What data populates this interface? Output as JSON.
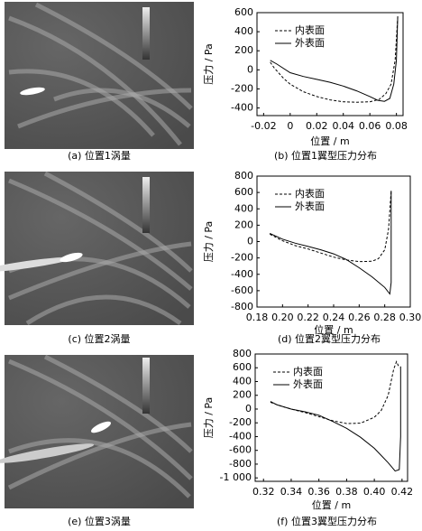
{
  "figures": [
    {
      "caption": "(a) 位置1涡量"
    },
    {
      "caption": "(c) 位置2涡量"
    },
    {
      "caption": "(e) 位置3涡量"
    }
  ],
  "chart_data": [
    {
      "type": "line",
      "caption": "(b) 位置1翼型压力分布",
      "xlabel": "位置 / m",
      "ylabel": "压力 / Pa",
      "legend": "upper left",
      "xlim": [
        -0.025,
        0.085
      ],
      "xticks": [
        -0.02,
        0,
        0.02,
        0.04,
        0.06,
        0.08
      ],
      "ylim": [
        -480,
        600
      ],
      "yticks": [
        -400,
        -200,
        0,
        200,
        400,
        600
      ],
      "series": [
        {
          "name": "内表面",
          "color": "#000000",
          "style": "dashed",
          "x": [
            -0.015,
            -0.012,
            -0.005,
            0,
            0.01,
            0.02,
            0.03,
            0.04,
            0.05,
            0.06,
            0.067,
            0.072,
            0.076,
            0.079,
            0.081
          ],
          "values": [
            80,
            20,
            -90,
            -150,
            -230,
            -280,
            -315,
            -335,
            -340,
            -335,
            -310,
            -250,
            -150,
            100,
            560
          ]
        },
        {
          "name": "外表面",
          "color": "#000000",
          "style": "solid",
          "x": [
            -0.015,
            -0.01,
            0,
            0.01,
            0.02,
            0.03,
            0.04,
            0.05,
            0.06,
            0.066,
            0.071,
            0.075,
            0.078,
            0.08,
            0.081
          ],
          "values": [
            100,
            60,
            -30,
            -70,
            -100,
            -130,
            -170,
            -220,
            -280,
            -320,
            -330,
            -300,
            -150,
            100,
            560
          ]
        }
      ]
    },
    {
      "type": "line",
      "caption": "(d) 位置2翼型压力分布",
      "xlabel": "位置 / m",
      "ylabel": "压力 / Pa",
      "legend": "upper left",
      "xlim": [
        0.18,
        0.3
      ],
      "xticks": [
        0.18,
        {
          "value": 0.2,
          "label": "0.20"
        },
        0.22,
        0.24,
        0.26,
        0.28,
        {
          "value": 0.3,
          "label": "0.30"
        }
      ],
      "ylim": [
        -800,
        800
      ],
      "yticks": [
        -800,
        -600,
        -400,
        -200,
        0,
        200,
        400,
        600,
        800
      ],
      "series": [
        {
          "name": "内表面",
          "color": "#000000",
          "style": "dashed",
          "x": [
            0.19,
            0.2,
            0.21,
            0.22,
            0.23,
            0.24,
            0.25,
            0.26,
            0.27,
            0.275,
            0.28,
            0.283,
            0.285
          ],
          "values": [
            90,
            10,
            -50,
            -90,
            -140,
            -190,
            -225,
            -245,
            -240,
            -210,
            -100,
            150,
            620
          ]
        },
        {
          "name": "外表面",
          "color": "#000000",
          "style": "solid",
          "x": [
            0.19,
            0.2,
            0.21,
            0.22,
            0.23,
            0.24,
            0.25,
            0.26,
            0.27,
            0.28,
            0.284,
            0.285,
            0.285
          ],
          "values": [
            100,
            30,
            -20,
            -60,
            -100,
            -150,
            -220,
            -320,
            -430,
            -560,
            -640,
            -500,
            620
          ]
        }
      ]
    },
    {
      "type": "line",
      "caption": "(f) 位置3翼型压力分布",
      "xlabel": "位置 / m",
      "ylabel": "压力 / Pa",
      "legend": "upper left",
      "xlim": [
        0.314,
        0.424
      ],
      "xticks": [
        0.32,
        0.34,
        0.36,
        0.38,
        {
          "value": 0.4,
          "label": "0.40"
        },
        0.42
      ],
      "ylim": [
        -1050,
        800
      ],
      "yticks": [
        {
          "value": -1000,
          "label": "-1 000"
        },
        -800,
        -600,
        -400,
        -200,
        0,
        200,
        400,
        600,
        800
      ],
      "series": [
        {
          "name": "内表面",
          "color": "#000000",
          "style": "dashed",
          "x": [
            0.325,
            0.33,
            0.34,
            0.35,
            0.36,
            0.37,
            0.38,
            0.39,
            0.4,
            0.405,
            0.41,
            0.414,
            0.416,
            0.418
          ],
          "values": [
            100,
            60,
            0,
            -50,
            -110,
            -170,
            -210,
            -205,
            -120,
            -20,
            200,
            580,
            690,
            600
          ]
        },
        {
          "name": "外表面",
          "color": "#000000",
          "style": "solid",
          "x": [
            0.325,
            0.33,
            0.34,
            0.35,
            0.36,
            0.37,
            0.38,
            0.39,
            0.4,
            0.41,
            0.415,
            0.418,
            0.419,
            0.419
          ],
          "values": [
            110,
            60,
            0,
            -40,
            -90,
            -180,
            -280,
            -410,
            -570,
            -780,
            -900,
            -880,
            -400,
            620
          ]
        }
      ]
    }
  ]
}
